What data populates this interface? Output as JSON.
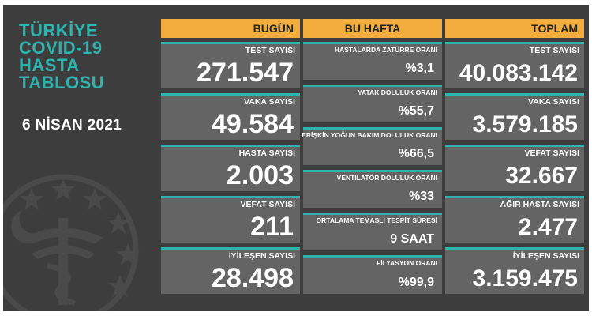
{
  "title": {
    "lines": [
      "TÜRKİYE",
      "COVID-19",
      "HASTA",
      "TABLOSU"
    ],
    "date": "6 NİSAN 2021"
  },
  "colors": {
    "accent_teal": "#2fb3ae",
    "header_orange": "#f3ad3f",
    "background": "#3d3d3d",
    "card": "#646464"
  },
  "emblem": {
    "icon": "ministry-of-health-emblem-icon"
  },
  "today": {
    "header": "BUGÜN",
    "cards": [
      {
        "label": "TEST SAYISI",
        "value": "271.547"
      },
      {
        "label": "VAKA SAYISI",
        "value": "49.584"
      },
      {
        "label": "HASTA SAYISI",
        "value": "2.003"
      },
      {
        "label": "VEFAT SAYISI",
        "value": "211"
      },
      {
        "label": "İYİLEŞEN SAYISI",
        "value": "28.498"
      }
    ]
  },
  "week": {
    "header": "BU HAFTA",
    "cards": [
      {
        "label": "HASTALARDA ZATÜRRE ORANI",
        "value": "%3,1"
      },
      {
        "label": "YATAK DOLULUK ORANI",
        "value": "%55,7"
      },
      {
        "label": "ERİŞKİN YOĞUN BAKIM DOLULUK ORANI",
        "value": "%66,5"
      },
      {
        "label": "VENTİLATÖR DOLULUK ORANI",
        "value": "%33"
      },
      {
        "label": "ORTALAMA TEMASLI TESPİT SÜRESİ",
        "value": "9 SAAT"
      },
      {
        "label": "FİLYASYON ORANI",
        "value": "%99,9"
      }
    ]
  },
  "total": {
    "header": "TOPLAM",
    "cards": [
      {
        "label": "TEST SAYISI",
        "value": "40.083.142"
      },
      {
        "label": "VAKA SAYISI",
        "value": "3.579.185"
      },
      {
        "label": "VEFAT SAYISI",
        "value": "32.667"
      },
      {
        "label": "AĞIR HASTA SAYISI",
        "value": "2.477"
      },
      {
        "label": "İYİLEŞEN SAYISI",
        "value": "3.159.475"
      }
    ]
  }
}
